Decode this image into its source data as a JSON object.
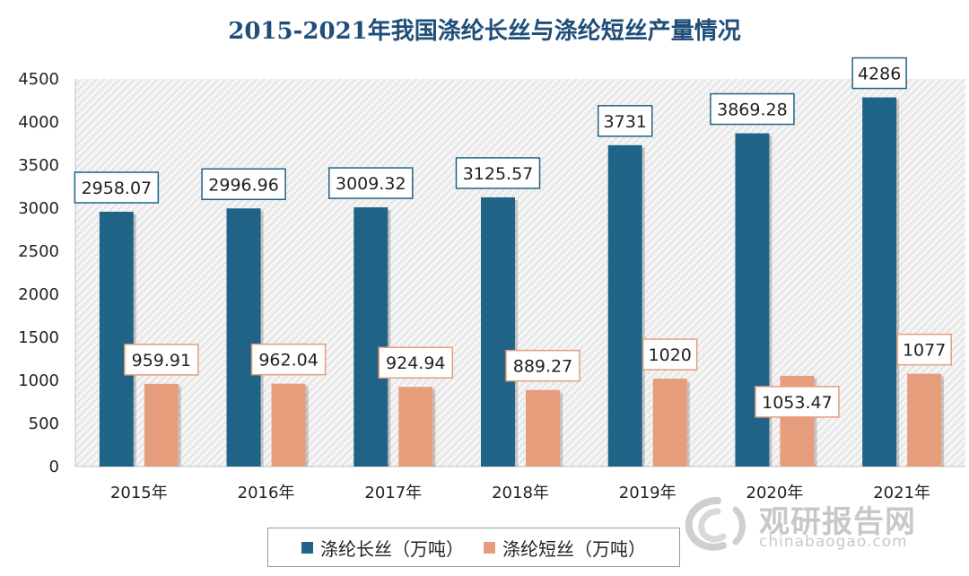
{
  "chart_data": {
    "type": "bar",
    "title": "2015-2021年我国涤纶长丝与涤纶短丝产量情况",
    "categories": [
      "2015年",
      "2016年",
      "2017年",
      "2018年",
      "2019年",
      "2020年",
      "2021年"
    ],
    "series": [
      {
        "name": "涤纶长丝（万吨）",
        "color": "#1f6387",
        "values": [
          2958.07,
          2996.96,
          3009.32,
          3125.57,
          3731,
          3869.28,
          4286
        ],
        "labels": [
          "2958.07",
          "2996.96",
          "3009.32",
          "3125.57",
          "3731",
          "3869.28",
          "4286"
        ]
      },
      {
        "name": "涤纶短丝（万吨）",
        "color": "#e59d7c",
        "values": [
          959.91,
          962.04,
          924.94,
          889.27,
          1020,
          1053.47,
          1077
        ],
        "labels": [
          "959.91",
          "962.04",
          "924.94",
          "889.27",
          "1020",
          "1053.47",
          "1077"
        ]
      }
    ],
    "yticks": [
      "0",
      "500",
      "1000",
      "1500",
      "2000",
      "2500",
      "3000",
      "3500",
      "4000",
      "4500"
    ],
    "ylim": [
      0,
      4500
    ],
    "grid": false,
    "legend_position": "bottom"
  },
  "watermark": {
    "name": "观研报告网",
    "url": "chinabaogao.com",
    "logo_icon": "swirl-logo-icon"
  }
}
